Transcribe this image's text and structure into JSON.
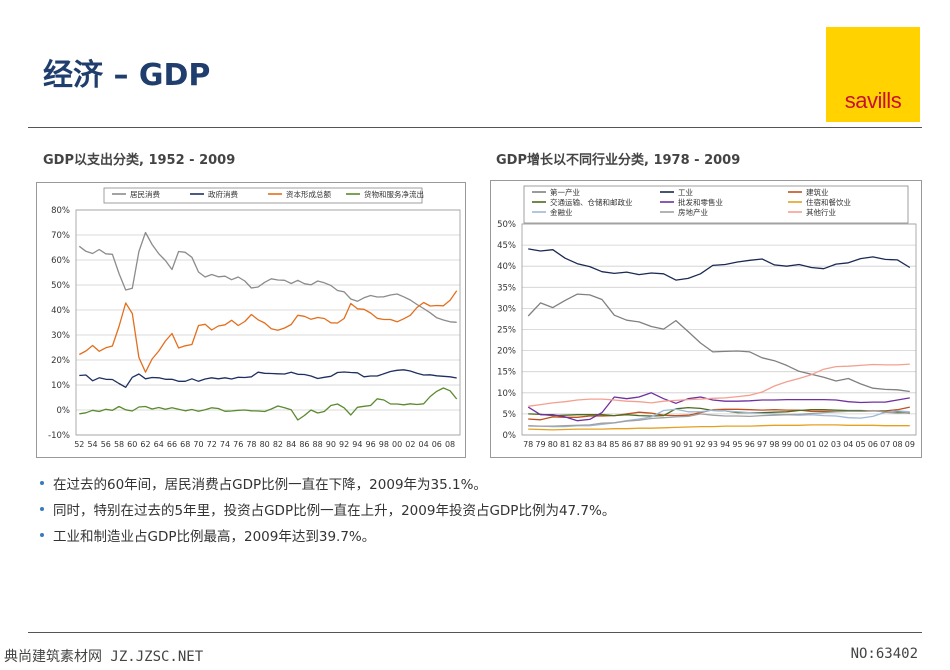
{
  "page": {
    "title": "经济 – GDP",
    "logo_text": "savills",
    "footer_left": "典尚建筑素材网 JZ.JZSC.NET",
    "footer_right": "NO:63402"
  },
  "bullets": [
    "在过去的60年间，居民消费占GDP比例一直在下降，2009年为35.1%。",
    "同时，特别在过去的5年里，投资占GDP比例一直在上升，2009年投资占GDP比例为47.7%。",
    "工业和制造业占GDP比例最高，2009年达到39.7%。"
  ],
  "colors": {
    "title": "#1f3e6e",
    "logo_bg": "#ffd200",
    "logo_text": "#c8102e",
    "bullet_dot": "#3a7bbf"
  },
  "chart_data": [
    {
      "type": "line",
      "title": "GDP以支出分类, 1952 - 2009",
      "ylim": [
        -10,
        80
      ],
      "y_ticks": [
        -10,
        0,
        10,
        20,
        30,
        40,
        50,
        60,
        70,
        80
      ],
      "y_tick_labels": [
        "-10%",
        "0%",
        "10%",
        "20%",
        "30%",
        "40%",
        "50%",
        "60%",
        "70%",
        "80%"
      ],
      "x": [
        1952,
        1953,
        1954,
        1955,
        1956,
        1957,
        1958,
        1959,
        1960,
        1961,
        1962,
        1963,
        1964,
        1965,
        1966,
        1967,
        1968,
        1969,
        1970,
        1971,
        1972,
        1973,
        1974,
        1975,
        1976,
        1977,
        1978,
        1979,
        1980,
        1981,
        1982,
        1983,
        1984,
        1985,
        1986,
        1987,
        1988,
        1989,
        1990,
        1991,
        1992,
        1993,
        1994,
        1995,
        1996,
        1997,
        1998,
        1999,
        2000,
        2001,
        2002,
        2003,
        2004,
        2005,
        2006,
        2007,
        2008,
        2009
      ],
      "x_tick_labels": [
        "52",
        "54",
        "56",
        "58",
        "60",
        "62",
        "64",
        "66",
        "68",
        "70",
        "72",
        "74",
        "76",
        "78",
        "80",
        "82",
        "84",
        "86",
        "88",
        "90",
        "92",
        "94",
        "96",
        "98",
        "00",
        "02",
        "04",
        "06",
        "08"
      ],
      "legend_position": "top",
      "grid": true,
      "series": [
        {
          "name": "居民消费",
          "color": "#8c8c8c",
          "values": [
            65.5,
            63.5,
            62.6,
            64.2,
            62.5,
            62.3,
            54.6,
            48.0,
            48.7,
            63.4,
            71.0,
            66.2,
            62.5,
            59.8,
            56.2,
            63.4,
            63.1,
            61.1,
            55.2,
            53.2,
            54.2,
            53.3,
            53.5,
            52.1,
            53.2,
            51.6,
            48.8,
            49.2,
            51.1,
            52.5,
            52.0,
            51.9,
            50.6,
            51.9,
            50.5,
            50.1,
            51.6,
            50.9,
            49.8,
            47.8,
            47.3,
            44.4,
            43.5,
            44.9,
            45.8,
            45.2,
            45.3,
            46.0,
            46.4,
            45.3,
            44.0,
            42.2,
            40.6,
            38.9,
            36.9,
            36.0,
            35.3,
            35.1
          ]
        },
        {
          "name": "政府消费",
          "color": "#1f3060",
          "values": [
            13.8,
            14.0,
            11.7,
            12.9,
            12.3,
            12.2,
            10.6,
            9.1,
            13.1,
            14.4,
            12.5,
            13.0,
            12.9,
            12.3,
            12.3,
            11.5,
            11.5,
            12.5,
            11.5,
            12.4,
            12.9,
            12.5,
            12.9,
            12.4,
            13.1,
            13.0,
            13.3,
            15.1,
            14.7,
            14.6,
            14.5,
            14.4,
            15.1,
            14.3,
            14.2,
            13.6,
            12.6,
            13.1,
            13.5,
            15.0,
            15.2,
            15.0,
            14.9,
            13.3,
            13.6,
            13.6,
            14.5,
            15.4,
            15.9,
            16.1,
            15.6,
            14.7,
            14.0,
            14.1,
            13.7,
            13.5,
            13.3,
            12.8
          ]
        },
        {
          "name": "资本形成总额",
          "color": "#e36f1e",
          "values": [
            22.2,
            23.6,
            25.8,
            23.5,
            24.9,
            25.6,
            33.4,
            42.8,
            38.6,
            21.0,
            15.1,
            20.4,
            23.6,
            27.6,
            30.6,
            24.8,
            25.7,
            26.2,
            33.8,
            34.3,
            32.0,
            33.6,
            34.1,
            35.9,
            33.8,
            35.4,
            38.2,
            36.1,
            34.8,
            32.5,
            31.9,
            32.8,
            34.2,
            37.9,
            37.5,
            36.3,
            37.0,
            36.6,
            34.9,
            34.8,
            36.6,
            42.6,
            40.5,
            40.3,
            38.8,
            36.7,
            36.2,
            36.2,
            35.3,
            36.5,
            37.9,
            41.0,
            43.0,
            41.6,
            41.8,
            41.7,
            43.9,
            47.7
          ]
        },
        {
          "name": "货物和服务净流出",
          "color": "#5b8a2e",
          "values": [
            -1.5,
            -1.1,
            -0.1,
            -0.6,
            0.3,
            -0.1,
            1.4,
            0.1,
            -0.4,
            1.2,
            1.4,
            0.4,
            1.0,
            0.3,
            0.9,
            0.3,
            -0.3,
            0.2,
            -0.5,
            0.1,
            0.9,
            0.6,
            -0.5,
            -0.4,
            -0.1,
            0.0,
            -0.3,
            -0.4,
            -0.6,
            0.4,
            1.6,
            0.9,
            0.1,
            -4.0,
            -2.2,
            0.0,
            -1.2,
            -0.6,
            1.8,
            2.4,
            0.9,
            -2.0,
            1.1,
            1.5,
            1.8,
            4.5,
            4.0,
            2.4,
            2.4,
            2.1,
            2.5,
            2.2,
            2.5,
            5.4,
            7.5,
            8.8,
            7.7,
            4.4
          ]
        }
      ]
    },
    {
      "type": "line",
      "title": "GDP增长以不同行业分类, 1978 - 2009",
      "ylim": [
        0,
        50
      ],
      "y_ticks": [
        0,
        5,
        10,
        15,
        20,
        25,
        30,
        35,
        40,
        45,
        50
      ],
      "y_tick_labels": [
        "0%",
        "5%",
        "10%",
        "15%",
        "20%",
        "25%",
        "30%",
        "35%",
        "40%",
        "45%",
        "50%"
      ],
      "x": [
        1978,
        1979,
        1980,
        1981,
        1982,
        1983,
        1984,
        1985,
        1986,
        1987,
        1988,
        1989,
        1990,
        1991,
        1992,
        1993,
        1994,
        1995,
        1996,
        1997,
        1998,
        1999,
        2000,
        2001,
        2002,
        2003,
        2004,
        2005,
        2006,
        2007,
        2008,
        2009
      ],
      "x_tick_labels": [
        "78",
        "79",
        "80",
        "81",
        "82",
        "83",
        "84",
        "85",
        "86",
        "87",
        "88",
        "89",
        "90",
        "91",
        "92",
        "93",
        "94",
        "95",
        "96",
        "97",
        "98",
        "99",
        "00",
        "01",
        "02",
        "03",
        "04",
        "05",
        "06",
        "07",
        "08",
        "09"
      ],
      "legend_position": "top",
      "grid": true,
      "series": [
        {
          "name": "第一产业",
          "color": "#808080",
          "values": [
            28.2,
            31.3,
            30.2,
            31.9,
            33.4,
            33.2,
            32.1,
            28.4,
            27.2,
            26.8,
            25.7,
            25.1,
            27.1,
            24.5,
            21.8,
            19.7,
            19.8,
            19.9,
            19.7,
            18.3,
            17.6,
            16.5,
            15.1,
            14.4,
            13.7,
            12.8,
            13.4,
            12.1,
            11.1,
            10.8,
            10.7,
            10.3
          ]
        },
        {
          "name": "工业",
          "color": "#1a2a52",
          "values": [
            44.1,
            43.6,
            43.9,
            41.9,
            40.6,
            39.9,
            38.7,
            38.3,
            38.6,
            38.0,
            38.4,
            38.2,
            36.7,
            37.1,
            38.2,
            40.2,
            40.4,
            41.0,
            41.4,
            41.7,
            40.3,
            40.0,
            40.4,
            39.7,
            39.4,
            40.5,
            40.8,
            41.8,
            42.2,
            41.6,
            41.5,
            39.7
          ]
        },
        {
          "name": "建筑业",
          "color": "#c0501e",
          "values": [
            3.8,
            3.6,
            4.3,
            4.2,
            4.2,
            4.5,
            4.5,
            4.6,
            5.0,
            5.4,
            5.2,
            4.7,
            4.6,
            4.7,
            5.3,
            6.0,
            6.1,
            6.1,
            6.0,
            5.9,
            6.0,
            5.9,
            5.9,
            5.6,
            5.6,
            5.6,
            5.6,
            5.6,
            5.7,
            5.7,
            6.0,
            6.6
          ]
        },
        {
          "name": "交通运输、仓储和邮政业",
          "color": "#4c6b1f",
          "values": [
            5.0,
            4.9,
            4.6,
            4.7,
            4.8,
            4.8,
            4.8,
            4.6,
            4.8,
            4.6,
            4.5,
            4.6,
            6.2,
            6.5,
            6.3,
            5.8,
            5.7,
            5.3,
            5.3,
            5.3,
            5.4,
            5.5,
            5.8,
            6.0,
            6.0,
            5.9,
            5.8,
            5.8,
            5.7,
            5.6,
            5.5,
            5.2
          ]
        },
        {
          "name": "批发和零售业",
          "color": "#7030a0",
          "values": [
            6.6,
            4.8,
            4.8,
            4.3,
            3.4,
            3.7,
            5.3,
            9.0,
            8.6,
            9.0,
            10.0,
            8.6,
            7.5,
            8.6,
            9.0,
            8.3,
            8.0,
            8.0,
            8.1,
            8.3,
            8.3,
            8.4,
            8.4,
            8.4,
            8.4,
            8.3,
            7.9,
            7.7,
            7.8,
            7.8,
            8.3,
            8.8
          ]
        },
        {
          "name": "住宿和餐饮业",
          "color": "#e6a020",
          "values": [
            1.4,
            1.3,
            1.2,
            1.3,
            1.4,
            1.4,
            1.4,
            1.5,
            1.5,
            1.6,
            1.6,
            1.7,
            1.8,
            1.9,
            2.0,
            2.0,
            2.1,
            2.1,
            2.1,
            2.2,
            2.3,
            2.3,
            2.3,
            2.4,
            2.4,
            2.4,
            2.3,
            2.3,
            2.3,
            2.2,
            2.2,
            2.2
          ]
        },
        {
          "name": "金融业",
          "color": "#9fb7d8",
          "values": [
            2.1,
            2.1,
            2.0,
            2.0,
            2.2,
            2.2,
            2.5,
            2.9,
            3.4,
            3.8,
            4.3,
            5.8,
            6.1,
            5.5,
            5.5,
            5.9,
            5.7,
            5.5,
            5.3,
            5.1,
            5.0,
            4.8,
            4.7,
            4.8,
            4.6,
            4.5,
            4.1,
            4.0,
            4.4,
            5.4,
            5.7,
            5.5
          ]
        },
        {
          "name": "房地产业",
          "color": "#a0a0a0",
          "values": [
            2.2,
            2.1,
            2.1,
            2.2,
            2.3,
            2.4,
            2.8,
            2.9,
            3.3,
            3.5,
            3.9,
            4.1,
            4.3,
            4.4,
            5.0,
            4.7,
            4.5,
            4.5,
            4.4,
            4.6,
            4.7,
            4.8,
            4.9,
            5.1,
            5.3,
            5.5,
            5.6,
            5.6,
            5.8,
            5.4,
            5.2,
            5.3
          ]
        },
        {
          "name": "其他行业",
          "color": "#f4a090",
          "values": [
            6.8,
            7.2,
            7.6,
            7.9,
            8.3,
            8.5,
            8.5,
            8.3,
            8.0,
            7.9,
            7.6,
            8.0,
            8.2,
            8.4,
            8.5,
            8.7,
            8.8,
            9.1,
            9.4,
            10.2,
            11.6,
            12.6,
            13.4,
            14.3,
            15.6,
            16.2,
            16.3,
            16.5,
            16.7,
            16.6,
            16.6,
            16.8
          ]
        }
      ]
    }
  ]
}
